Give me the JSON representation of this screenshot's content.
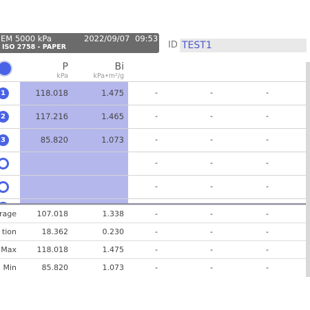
{
  "header": {
    "title": "EM 5000  kPa",
    "date": "2022/09/07",
    "time": "09:53",
    "subtitle": "ISO 2758 - PAPER"
  },
  "id_field": {
    "label": "ID",
    "value": "TEST1"
  },
  "columns": [
    {
      "symbol": "P",
      "unit": "kPa"
    },
    {
      "symbol": "Bi",
      "unit": "kPa•m²/g"
    }
  ],
  "rows": [
    {
      "index": "1",
      "p": "118.018",
      "bi": "1.475"
    },
    {
      "index": "2",
      "p": "117.216",
      "bi": "1.465"
    },
    {
      "index": "3",
      "p": "85.820",
      "bi": "1.073"
    },
    {
      "index": "",
      "p": "",
      "bi": ""
    },
    {
      "index": "",
      "p": "",
      "bi": ""
    }
  ],
  "empty_marker": "-",
  "stats": [
    {
      "label": "rage",
      "p": "107.018",
      "bi": "1.338"
    },
    {
      "label": "tion",
      "p": "18.362",
      "bi": "0.230"
    },
    {
      "label": "Max",
      "p": "118.018",
      "bi": "1.475"
    },
    {
      "label": "Min",
      "p": "85.820",
      "bi": "1.073"
    }
  ],
  "colors": {
    "accent": "#4a63e6",
    "cell_highlight": "#b4b7ec",
    "header_bg": "#6b6b6b"
  }
}
